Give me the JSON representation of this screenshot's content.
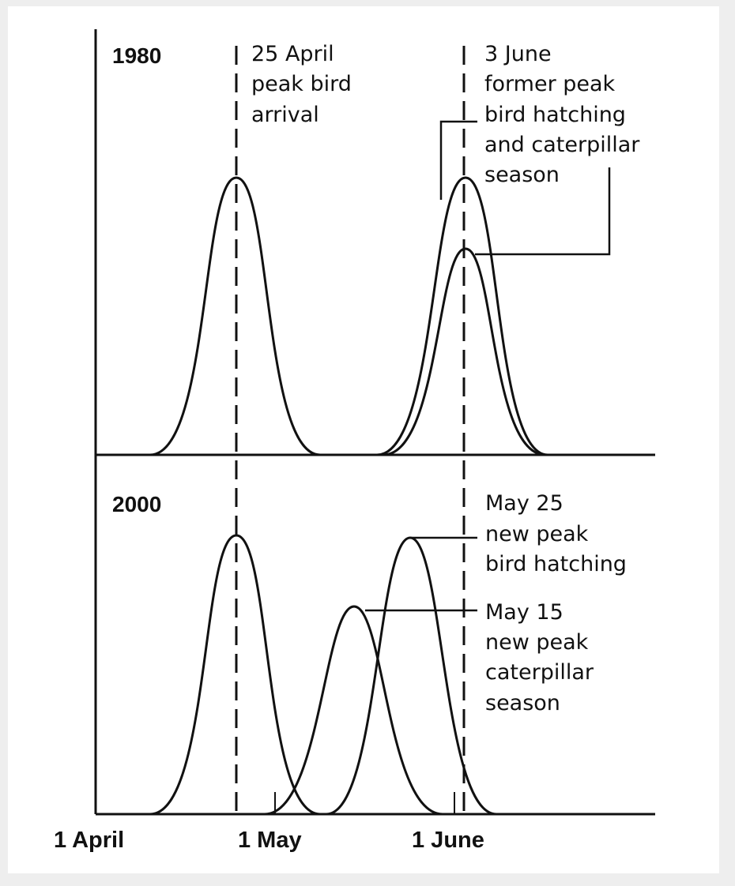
{
  "panels": {
    "top": {
      "year": "1980"
    },
    "bottom": {
      "year": "2000"
    }
  },
  "annotations": {
    "arrival": [
      "25 April",
      "peak bird",
      "arrival"
    ],
    "former_peak": [
      "3 June",
      "former peak",
      "bird hatching",
      "and caterpillar",
      "season"
    ],
    "new_hatching": [
      "May 25",
      "new peak",
      "bird hatching"
    ],
    "new_caterpillar": [
      "May 15",
      "new peak",
      "caterpillar",
      "season"
    ]
  },
  "x_axis": {
    "ticks": [
      {
        "date": "1 April",
        "label": "1 April"
      },
      {
        "date": "1 May",
        "label": "1 May"
      },
      {
        "date": "1 June",
        "label": "1 June"
      }
    ]
  },
  "curves_1980": [
    {
      "peak_date": "25 April",
      "relative_height": 1.0
    },
    {
      "peak_date": "3 June",
      "relative_height": 1.0
    },
    {
      "peak_date": "3 June",
      "relative_height": 0.74
    }
  ],
  "curves_2000": [
    {
      "peak_date": "25 April",
      "relative_height": 1.0
    },
    {
      "peak_date": "15 May",
      "relative_height": 0.74
    },
    {
      "peak_date": "25 May",
      "relative_height": 1.0
    }
  ]
}
